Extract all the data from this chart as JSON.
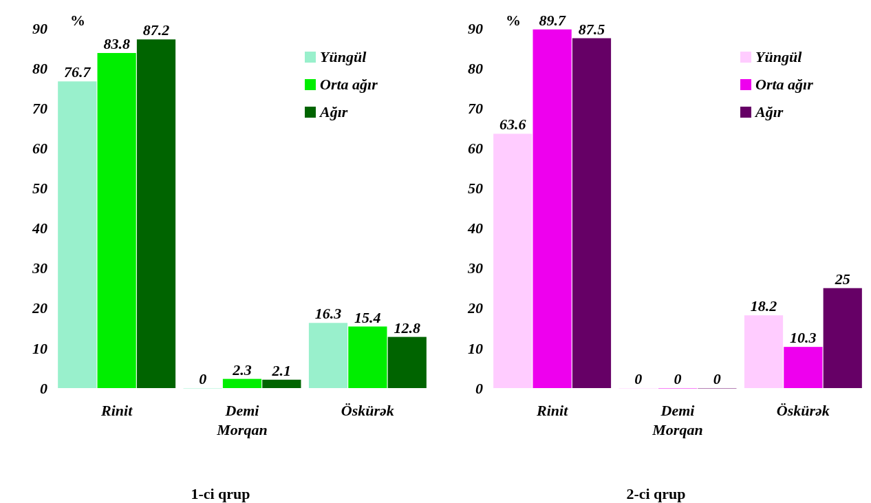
{
  "chart_data": [
    {
      "type": "bar",
      "title": "1-ci qrup",
      "ylabel": "%",
      "categories": [
        "Rinit",
        "Demi Morqan",
        "Öskürək"
      ],
      "series": [
        {
          "name": "Yüngül",
          "color": "#99f0cc",
          "values": [
            76.7,
            0,
            16.3
          ]
        },
        {
          "name": "Orta ağır",
          "color": "#00ee00",
          "values": [
            83.8,
            2.3,
            15.4
          ]
        },
        {
          "name": "Ağır",
          "color": "#006400",
          "values": [
            87.2,
            2.1,
            12.8
          ]
        }
      ],
      "ylim": [
        0,
        90
      ],
      "yticks": [
        0,
        10,
        20,
        30,
        40,
        50,
        60,
        70,
        80,
        90
      ],
      "data_labels": true,
      "legend": "top right",
      "grid": false
    },
    {
      "type": "bar",
      "title": "2-ci qrup",
      "ylabel": "%",
      "categories": [
        "Rinit",
        "Demi Morqan",
        "Öskürək"
      ],
      "series": [
        {
          "name": "Yüngül",
          "color": "#ffccff",
          "values": [
            63.6,
            0,
            18.2
          ]
        },
        {
          "name": "Orta ağır",
          "color": "#ee00ee",
          "values": [
            89.7,
            0,
            10.3
          ]
        },
        {
          "name": "Ağır",
          "color": "#660066",
          "values": [
            87.5,
            0,
            25
          ]
        }
      ],
      "ylim": [
        0,
        90
      ],
      "yticks": [
        0,
        10,
        20,
        30,
        40,
        50,
        60,
        70,
        80,
        90
      ],
      "data_labels": true,
      "legend": "top right",
      "grid": false
    }
  ]
}
